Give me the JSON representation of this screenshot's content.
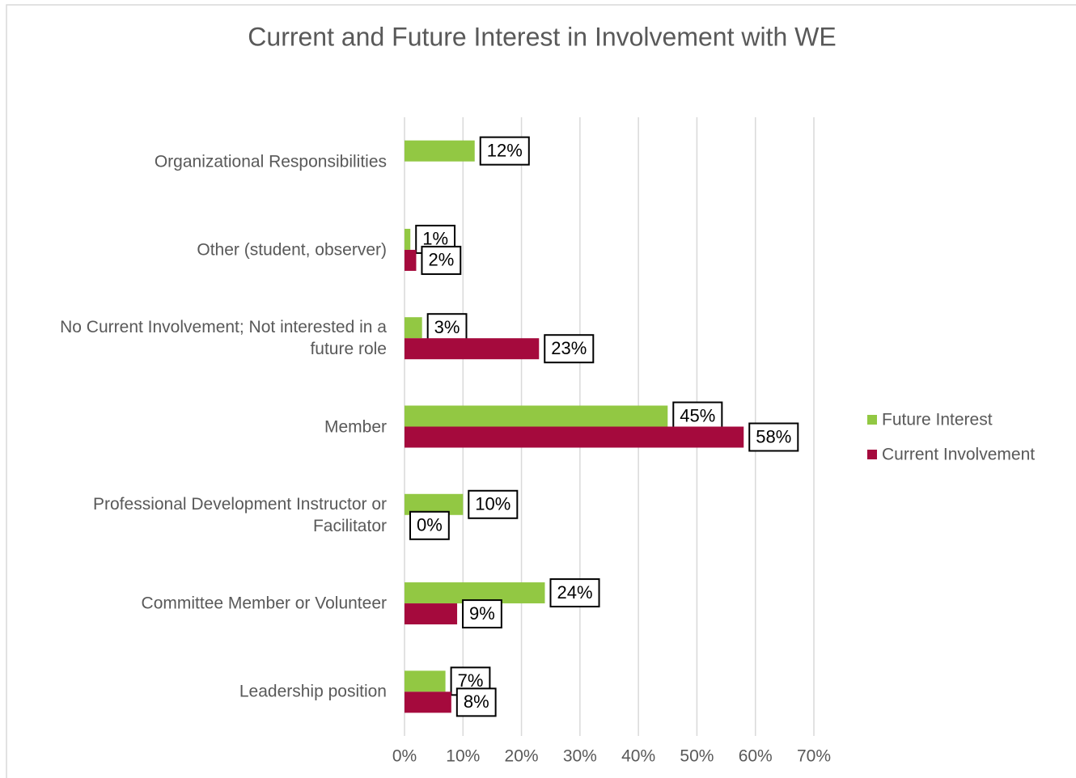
{
  "chart_data": {
    "type": "bar",
    "orientation": "horizontal",
    "title": "Current and Future Interest in Involvement with WE",
    "categories": [
      "Organizational Responsibilities",
      "Other (student, observer)",
      "No Current Involvement; Not interested in a future role",
      "Member",
      "Professional Development Instructor or Facilitator",
      "Committee Member or Volunteer",
      "Leadership position"
    ],
    "series": [
      {
        "name": "Future Interest",
        "color": "#92c843",
        "values": [
          12,
          1,
          3,
          45,
          10,
          24,
          7
        ],
        "value_labels": [
          "12%",
          "1%",
          "3%",
          "45%",
          "10%",
          "24%",
          "7%"
        ]
      },
      {
        "name": "Current Involvement",
        "color": "#a50a3d",
        "values": [
          null,
          2,
          23,
          58,
          0,
          9,
          8
        ],
        "value_labels": [
          null,
          "2%",
          "23%",
          "58%",
          "0%",
          "9%",
          "8%"
        ]
      }
    ],
    "xlim": [
      0,
      70
    ],
    "xticks": [
      {
        "value": 0,
        "label": "0%"
      },
      {
        "value": 10,
        "label": "10%"
      },
      {
        "value": 20,
        "label": "20%"
      },
      {
        "value": 30,
        "label": "30%"
      },
      {
        "value": 40,
        "label": "40%"
      },
      {
        "value": 50,
        "label": "50%"
      },
      {
        "value": 60,
        "label": "60%"
      },
      {
        "value": 70,
        "label": "70%"
      }
    ],
    "grid": true,
    "legend": "right"
  }
}
